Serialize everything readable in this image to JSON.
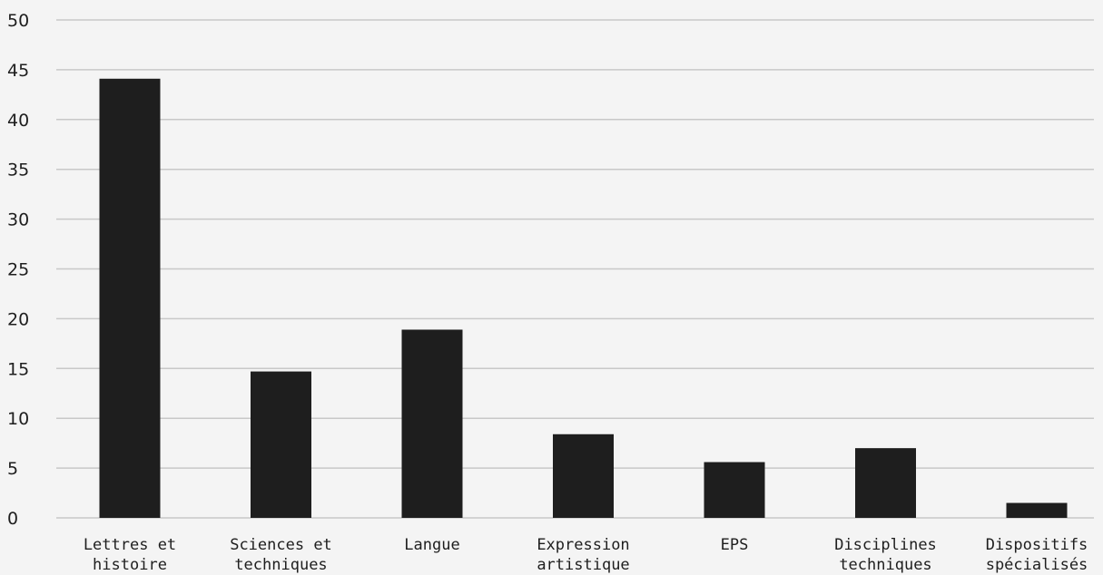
{
  "chart_data": {
    "type": "bar",
    "title": "",
    "xlabel": "",
    "ylabel": "",
    "categories": [
      [
        "Lettres et",
        "histoire"
      ],
      [
        "Sciences et",
        "techniques"
      ],
      [
        "Langue"
      ],
      [
        "Expression",
        "artistique"
      ],
      [
        "EPS"
      ],
      [
        "Disciplines",
        "techniques"
      ],
      [
        "Dispositifs",
        "spécialisés"
      ]
    ],
    "values": [
      44.1,
      14.7,
      18.9,
      8.4,
      5.6,
      7.0,
      1.5
    ],
    "ylim": [
      0,
      50
    ],
    "yticks": [
      0,
      5,
      10,
      15,
      20,
      25,
      30,
      35,
      40,
      45,
      50
    ],
    "grid": true,
    "legend": "none",
    "colors": {
      "bar": "#1e1e1e",
      "background": "#f4f4f4",
      "grid": "#c8c8c8",
      "text": "#1e1e1e"
    }
  }
}
